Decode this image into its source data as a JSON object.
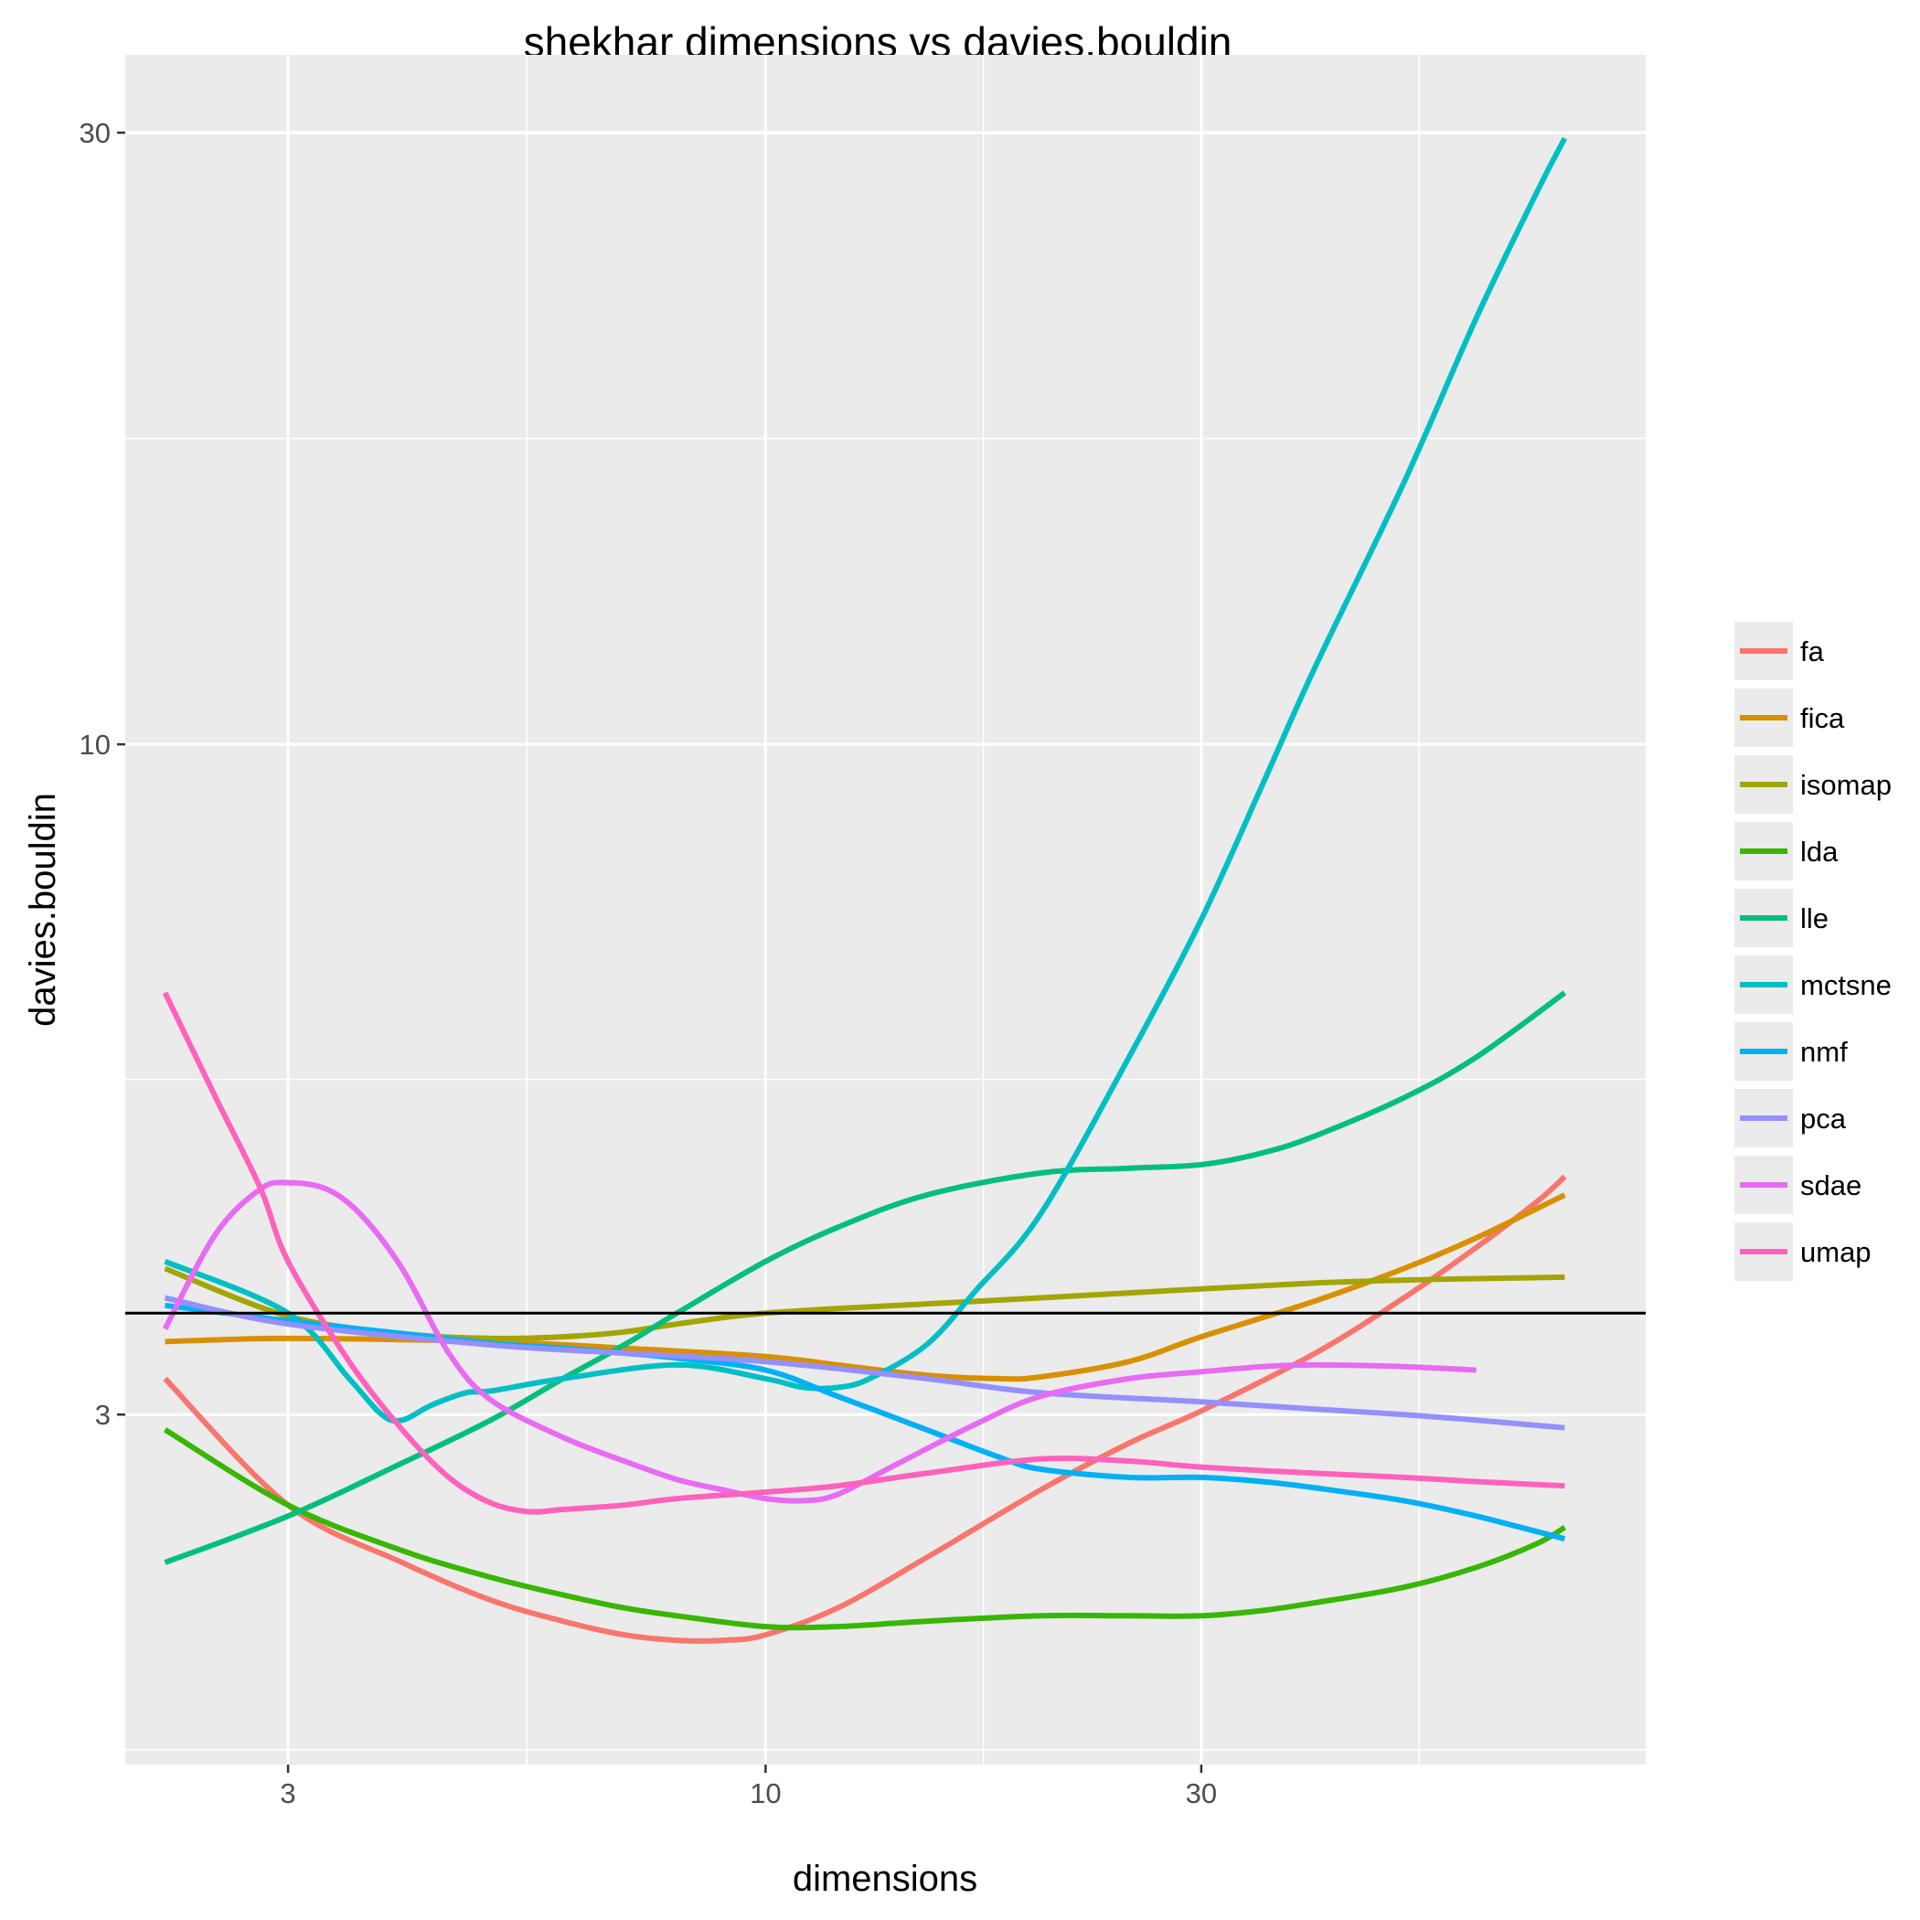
{
  "chart_data": {
    "type": "line",
    "title": "shekhar dimensions vs davies.bouldin",
    "xlabel": "dimensions",
    "ylabel": "davies.bouldin",
    "x_scale": "log10",
    "y_scale": "log10",
    "xlim": [
      1.99,
      92
    ],
    "ylim": [
      1.6,
      34.5
    ],
    "x_ticks": [
      3,
      10,
      30
    ],
    "x_tick_labels": [
      "3",
      "10",
      "30"
    ],
    "y_ticks": [
      3,
      10,
      30
    ],
    "y_tick_labels": [
      "3",
      "10",
      "30"
    ],
    "grid": true,
    "legend_position": "right",
    "reference_line": {
      "y": 3.6,
      "color": "#000000"
    },
    "series": [
      {
        "name": "fa",
        "color": "#F8766D",
        "x": [
          2.2,
          3,
          4,
          5,
          6,
          7,
          8,
          9,
          10,
          12,
          15,
          20,
          25,
          30,
          40,
          50,
          60,
          70,
          75
        ],
        "y": [
          3.2,
          2.55,
          2.3,
          2.15,
          2.07,
          2.02,
          2.0,
          2.0,
          2.02,
          2.12,
          2.32,
          2.62,
          2.85,
          3.02,
          3.35,
          3.7,
          4.05,
          4.4,
          4.6
        ]
      },
      {
        "name": "fica",
        "color": "#D89000",
        "x": [
          2.2,
          3,
          5,
          7,
          10,
          12,
          15,
          18,
          20,
          25,
          30,
          40,
          50,
          60,
          75
        ],
        "y": [
          3.42,
          3.44,
          3.42,
          3.38,
          3.33,
          3.28,
          3.22,
          3.2,
          3.21,
          3.3,
          3.45,
          3.68,
          3.9,
          4.12,
          4.45
        ]
      },
      {
        "name": "isomap",
        "color": "#A3A500",
        "x": [
          2.2,
          3,
          4,
          5,
          6,
          7,
          8,
          10,
          15,
          20,
          30,
          40,
          50,
          60,
          75
        ],
        "y": [
          3.9,
          3.58,
          3.47,
          3.44,
          3.45,
          3.48,
          3.53,
          3.6,
          3.66,
          3.7,
          3.76,
          3.8,
          3.82,
          3.83,
          3.84
        ]
      },
      {
        "name": "lda",
        "color": "#39B600",
        "x": [
          2.2,
          3,
          4,
          5,
          6,
          7,
          8,
          10,
          12,
          15,
          20,
          25,
          30,
          35,
          40,
          50,
          60,
          70,
          75
        ],
        "y": [
          2.92,
          2.55,
          2.35,
          2.24,
          2.17,
          2.12,
          2.09,
          2.05,
          2.05,
          2.07,
          2.09,
          2.09,
          2.09,
          2.11,
          2.14,
          2.2,
          2.28,
          2.38,
          2.45
        ]
      },
      {
        "name": "lle",
        "color": "#00BF7D",
        "x": [
          2.2,
          3,
          4,
          5,
          6,
          7,
          8,
          10,
          12,
          15,
          20,
          25,
          30,
          35,
          40,
          50,
          60,
          75
        ],
        "y": [
          2.3,
          2.5,
          2.75,
          2.97,
          3.2,
          3.4,
          3.6,
          3.95,
          4.2,
          4.45,
          4.63,
          4.67,
          4.7,
          4.8,
          4.95,
          5.3,
          5.7,
          6.4
        ]
      },
      {
        "name": "mctsne",
        "color": "#00BFC4",
        "x": [
          2.2,
          3,
          3.5,
          3.8,
          4,
          4.3,
          4.7,
          5,
          6,
          8,
          10,
          11,
          12,
          13,
          15,
          17,
          20,
          25,
          30,
          35,
          40,
          50,
          60,
          70,
          75
        ],
        "y": [
          3.95,
          3.6,
          3.2,
          3.0,
          2.97,
          3.05,
          3.12,
          3.13,
          3.2,
          3.28,
          3.2,
          3.15,
          3.15,
          3.2,
          3.4,
          3.75,
          4.3,
          5.7,
          7.3,
          9.3,
          11.5,
          16.0,
          21.5,
          27.0,
          29.7
        ]
      },
      {
        "name": "nmf",
        "color": "#00B0F6",
        "x": [
          2.2,
          3,
          4,
          5,
          6,
          7,
          8,
          10,
          12,
          15,
          18,
          20,
          25,
          30,
          35,
          40,
          50,
          60,
          75
        ],
        "y": [
          3.65,
          3.55,
          3.47,
          3.41,
          3.38,
          3.35,
          3.32,
          3.25,
          3.1,
          2.92,
          2.78,
          2.72,
          2.68,
          2.68,
          2.66,
          2.63,
          2.57,
          2.5,
          2.4
        ]
      },
      {
        "name": "pca",
        "color": "#9590FF",
        "x": [
          2.2,
          3,
          5,
          7,
          10,
          15,
          20,
          30,
          40,
          50,
          60,
          75
        ],
        "y": [
          3.7,
          3.53,
          3.4,
          3.35,
          3.3,
          3.2,
          3.12,
          3.07,
          3.03,
          3.0,
          2.97,
          2.93
        ]
      },
      {
        "name": "sdae",
        "color": "#E76BF3",
        "x": [
          2.2,
          2.5,
          2.8,
          3,
          3.3,
          3.6,
          4,
          4.5,
          5,
          6,
          7,
          8,
          9,
          10,
          11,
          12,
          14,
          17,
          20,
          25,
          30,
          35,
          40,
          50,
          60
        ],
        "y": [
          3.5,
          4.15,
          4.5,
          4.55,
          4.5,
          4.3,
          3.9,
          3.35,
          3.08,
          2.88,
          2.76,
          2.67,
          2.62,
          2.58,
          2.57,
          2.6,
          2.75,
          2.95,
          3.1,
          3.2,
          3.24,
          3.27,
          3.28,
          3.27,
          3.25
        ]
      },
      {
        "name": "umap",
        "color": "#FF62BC",
        "x": [
          2.2,
          2.5,
          2.8,
          3,
          3.5,
          4,
          4.5,
          5,
          5.5,
          6,
          7,
          8,
          10,
          12,
          15,
          20,
          25,
          30,
          40,
          50,
          60,
          75
        ],
        "y": [
          6.4,
          5.3,
          4.5,
          3.95,
          3.3,
          2.92,
          2.68,
          2.56,
          2.52,
          2.53,
          2.55,
          2.58,
          2.61,
          2.64,
          2.7,
          2.77,
          2.76,
          2.73,
          2.7,
          2.68,
          2.66,
          2.64
        ]
      }
    ]
  }
}
